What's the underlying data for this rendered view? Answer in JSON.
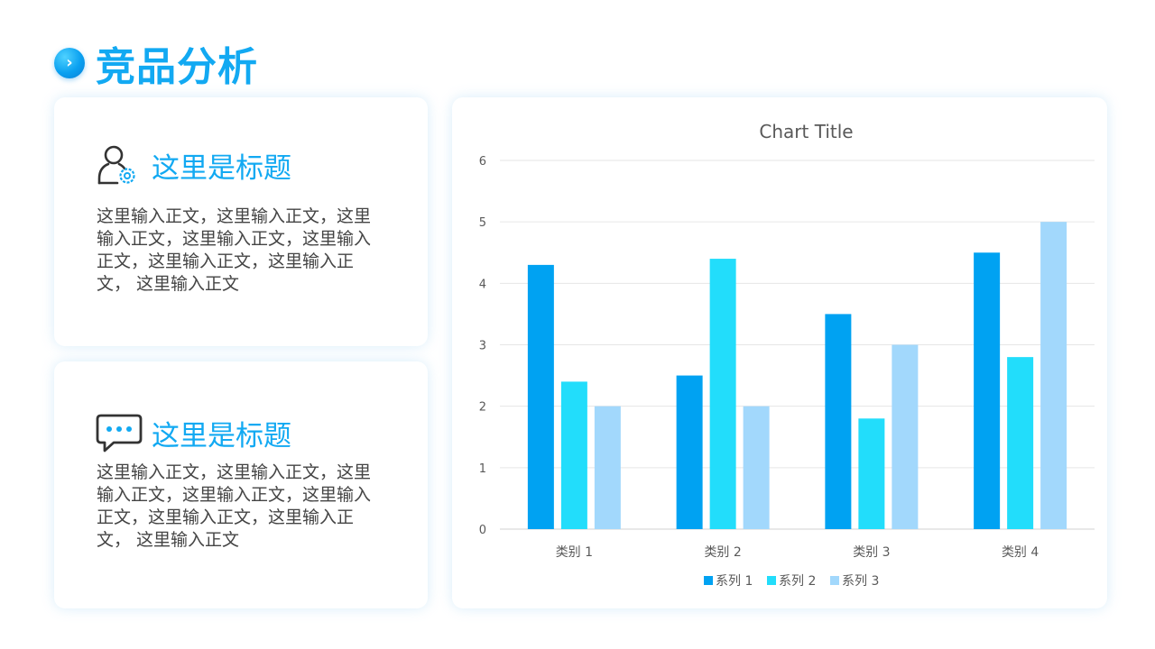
{
  "header": {
    "title": "竞品分析",
    "badge_glyph": "›"
  },
  "cards": [
    {
      "icon": "user-gear-icon",
      "title": "这里是标题",
      "body": "这里输入正文，这里输入正文，这里输入正文，这里输入正文，这里输入正文，这里输入正文，这里输入正文， 这里输入正文"
    },
    {
      "icon": "chat-bubble-icon",
      "title": "这里是标题",
      "body": "这里输入正文，这里输入正文，这里输入正文，这里输入正文，这里输入正文，这里输入正文，这里输入正文， 这里输入正文"
    }
  ],
  "colors": {
    "accent": "#12a9f2",
    "series_1": "#00A2F2",
    "series_2": "#22DDFB",
    "series_3": "#A2D8FC",
    "grid": "#e6e6e6",
    "axis_text": "#595959"
  },
  "chart_data": {
    "type": "bar",
    "title": "Chart Title",
    "categories": [
      "类别 1",
      "类别 2",
      "类别 3",
      "类别 4"
    ],
    "series": [
      {
        "name": "系列 1",
        "values": [
          4.3,
          2.5,
          3.5,
          4.5
        ]
      },
      {
        "name": "系列 2",
        "values": [
          2.4,
          4.4,
          1.8,
          2.8
        ]
      },
      {
        "name": "系列 3",
        "values": [
          2.0,
          2.0,
          3.0,
          5.0
        ]
      }
    ],
    "ylim": [
      0,
      6
    ],
    "yticks": [
      "0",
      "1",
      "2",
      "3",
      "4",
      "5",
      "6"
    ],
    "grid": true,
    "legend": "bottom"
  }
}
